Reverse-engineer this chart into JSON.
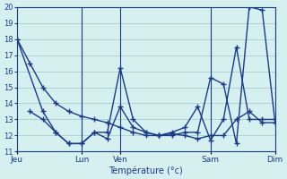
{
  "xlabel": "Température (°c)",
  "ylabel": "",
  "bg_color": "#d6f0f0",
  "line_color": "#1a3a8a",
  "grid_color": "#a0c8c8",
  "ylim": [
    11,
    20
  ],
  "yticks": [
    11,
    12,
    13,
    14,
    15,
    16,
    17,
    18,
    19,
    20
  ],
  "day_ticks": [
    0,
    5,
    8,
    15,
    20
  ],
  "day_labels": [
    "Jeu",
    "Lun",
    "Ven",
    "Sam",
    "Dim"
  ],
  "vlines": [
    5,
    8,
    15,
    20
  ],
  "line1_x": [
    0,
    1,
    2,
    3,
    4,
    5,
    6,
    7,
    8,
    9,
    10,
    11,
    12,
    13,
    14,
    15,
    16,
    17,
    18,
    19,
    20
  ],
  "line1_y": [
    18,
    16.5,
    15,
    14,
    13.5,
    13.2,
    13.0,
    12.8,
    12.5,
    12.2,
    12.0,
    12.0,
    12.1,
    12.0,
    11.8,
    12.0,
    12.0,
    13.0,
    13.5,
    12.8,
    12.8
  ],
  "line2_x": [
    0,
    2,
    3,
    4,
    5,
    6,
    7,
    8,
    9,
    10,
    11,
    12,
    13,
    14,
    15,
    16,
    17,
    18,
    19,
    20
  ],
  "line2_y": [
    18,
    13.5,
    12.2,
    11.5,
    11.5,
    12.2,
    12.2,
    16.2,
    13.0,
    12.2,
    12.0,
    12.0,
    12.2,
    12.2,
    15.6,
    15.2,
    11.5,
    20.0,
    19.8,
    12.8
  ],
  "line3_x": [
    1,
    2,
    3,
    4,
    5,
    6,
    7,
    8,
    9,
    10,
    11,
    12,
    13,
    14,
    15,
    16,
    17,
    18,
    19,
    20
  ],
  "line3_y": [
    13.5,
    13.0,
    12.2,
    11.5,
    11.5,
    12.2,
    11.8,
    13.8,
    12.5,
    12.2,
    12.0,
    12.2,
    12.5,
    13.8,
    11.7,
    13.0,
    17.5,
    13.0,
    13.0,
    13.0
  ]
}
